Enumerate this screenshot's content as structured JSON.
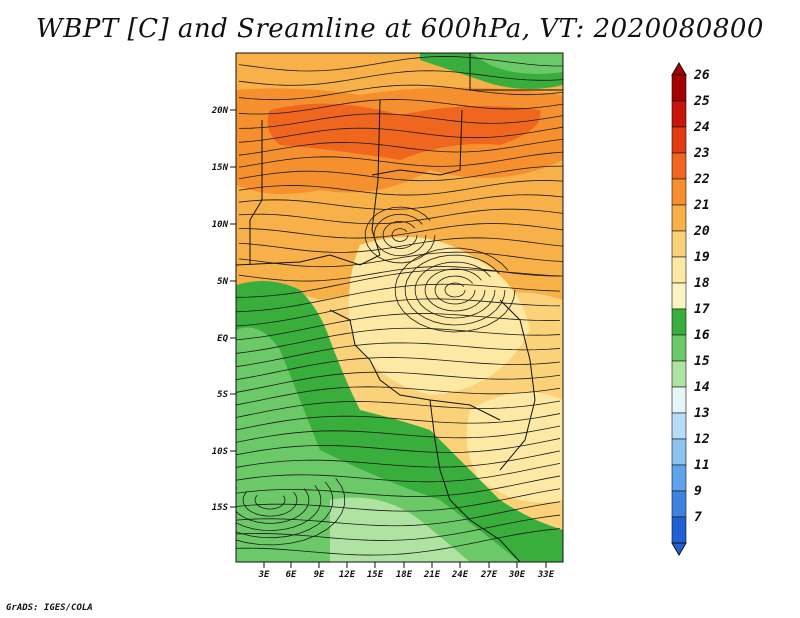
{
  "title": "WBPT [C] and Sreamline at 600hPa, VT: 2020080800",
  "credit": "GrADS: IGES/COLA",
  "map": {
    "lat_labels": [
      "20N",
      "15N",
      "10N",
      "5N",
      "EQ",
      "5S",
      "10S",
      "15S"
    ],
    "lon_labels": [
      "3E",
      "6E",
      "9E",
      "12E",
      "15E",
      "18E",
      "21E",
      "24E",
      "27E",
      "30E",
      "33E"
    ]
  },
  "colorbar": {
    "levels": [
      "26",
      "25",
      "24",
      "23",
      "22",
      "21",
      "20",
      "19",
      "18",
      "17",
      "16",
      "15",
      "14",
      "13",
      "12",
      "11",
      "9",
      "7"
    ],
    "colors": [
      "#a50000",
      "#c8140a",
      "#e23a12",
      "#f0661e",
      "#f6902e",
      "#f8b048",
      "#fbd27a",
      "#fde9a4",
      "#fbf3c2",
      "#39ae3c",
      "#6cc968",
      "#aee3a2",
      "#e4f6f6",
      "#b8dcf6",
      "#8cc3f0",
      "#5fa4ea",
      "#3d82e0",
      "#2060d2"
    ]
  },
  "field_colors": {
    "orange_dark": "#f0661e",
    "orange": "#f6902e",
    "orange_light": "#f8b048",
    "yellow": "#fbd27a",
    "cream": "#fde9a4",
    "green_dark": "#39ae3c",
    "green": "#6cc968",
    "green_light": "#aee3a2"
  }
}
